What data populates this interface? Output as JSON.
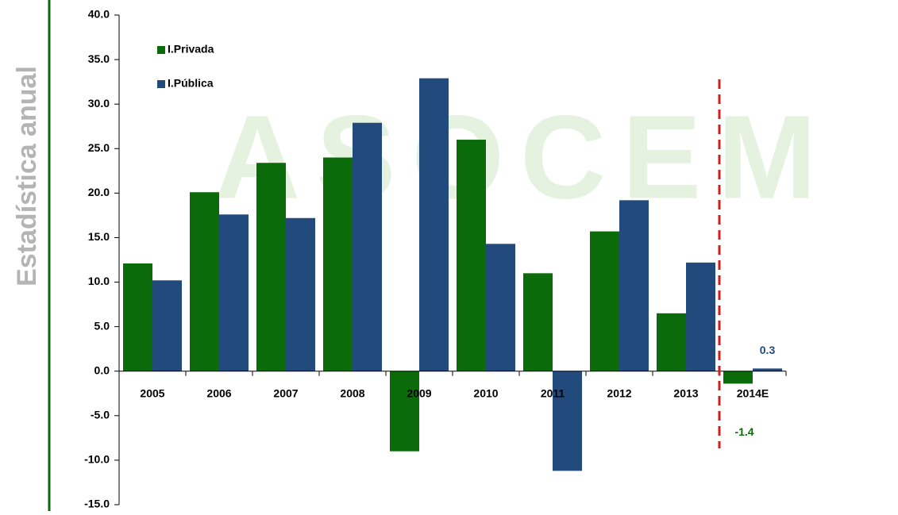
{
  "chart_data": {
    "type": "bar",
    "side_title": "Estadística anual",
    "watermark": "ASOCEM",
    "categories": [
      "2005",
      "2006",
      "2007",
      "2008",
      "2009",
      "2010",
      "2011",
      "2012",
      "2013",
      "2014E"
    ],
    "series": [
      {
        "name": "I.Privada",
        "color": "#0b6b0b",
        "values": [
          12.1,
          20.1,
          23.4,
          24.0,
          -9.0,
          26.0,
          11.0,
          15.7,
          6.5,
          -1.4
        ],
        "value_labels": [
          null,
          null,
          null,
          null,
          null,
          null,
          null,
          null,
          null,
          "-1.4"
        ]
      },
      {
        "name": "I.Pública",
        "color": "#234a7c",
        "values": [
          10.2,
          17.6,
          17.2,
          27.9,
          32.9,
          14.3,
          -11.2,
          19.2,
          12.2,
          0.3
        ],
        "value_labels": [
          null,
          null,
          null,
          null,
          null,
          null,
          null,
          null,
          null,
          "0.3"
        ]
      }
    ],
    "ylim": [
      -15,
      40
    ],
    "yticks": [
      {
        "value": -15,
        "label": "-15.0"
      },
      {
        "value": -10,
        "label": "-10.0"
      },
      {
        "value": -5,
        "label": "-5.0"
      },
      {
        "value": 0,
        "label": "0.0"
      },
      {
        "value": 5,
        "label": "5.0"
      },
      {
        "value": 10,
        "label": "10.0"
      },
      {
        "value": 15,
        "label": "15.0"
      },
      {
        "value": 20,
        "label": "20.0"
      },
      {
        "value": 25,
        "label": "25.0"
      },
      {
        "value": 30,
        "label": "30.0"
      },
      {
        "value": 35,
        "label": "35.0"
      },
      {
        "value": 40,
        "label": "40.0"
      }
    ],
    "grid": false,
    "legend": "upper left"
  }
}
